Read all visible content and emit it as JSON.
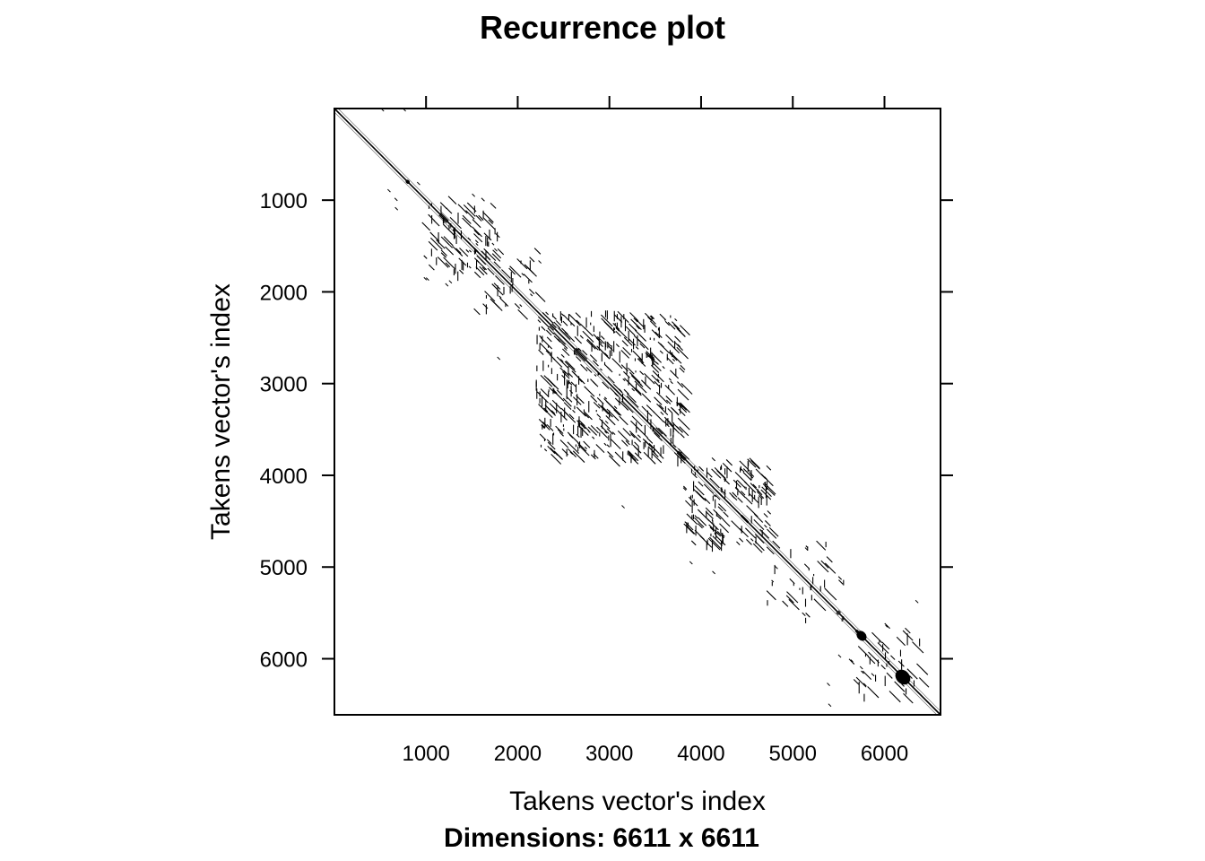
{
  "chart_data": {
    "type": "heatmap",
    "subtype": "recurrence-plot",
    "title": "Recurrence plot",
    "xlabel": "Takens vector's index",
    "ylabel": "Takens vector's index",
    "caption": "Dimensions: 6611 x 6611",
    "n": 6611,
    "xlim": [
      1,
      6611
    ],
    "ylim": [
      1,
      6611
    ],
    "y_reversed": true,
    "x_ticks": [
      1000,
      2000,
      3000,
      4000,
      5000,
      6000
    ],
    "y_ticks": [
      1000,
      2000,
      3000,
      4000,
      5000,
      6000
    ],
    "colors": {
      "recurrent": "#000000",
      "background": "#ffffff"
    },
    "regions": [
      {
        "x0": 950,
        "x1": 1800,
        "y0": 950,
        "y1": 1800,
        "density": 0.35
      },
      {
        "x0": 1500,
        "x1": 2200,
        "y0": 1500,
        "y1": 2200,
        "density": 0.25
      },
      {
        "x0": 2200,
        "x1": 3800,
        "y0": 2200,
        "y1": 3800,
        "density": 0.55
      },
      {
        "x0": 3800,
        "x1": 4750,
        "y0": 3800,
        "y1": 4750,
        "density": 0.5
      },
      {
        "x0": 4700,
        "x1": 5600,
        "y0": 4700,
        "y1": 5600,
        "density": 0.15
      },
      {
        "x0": 5600,
        "x1": 6400,
        "y0": 5600,
        "y1": 6400,
        "density": 0.2
      }
    ],
    "blobs": [
      {
        "x": 5750,
        "y": 5750,
        "r": 60
      },
      {
        "x": 6200,
        "y": 6200,
        "r": 90
      },
      {
        "x": 800,
        "y": 800,
        "r": 25
      }
    ]
  }
}
